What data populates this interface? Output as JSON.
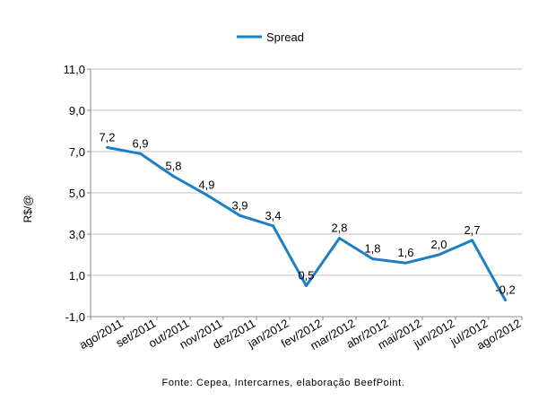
{
  "chart_data": {
    "type": "line",
    "title": "",
    "xlabel": "",
    "ylabel": "R$/@",
    "categories": [
      "ago/2011",
      "set/2011",
      "out/2011",
      "nov/2011",
      "dez/2011",
      "jan/2012",
      "fev/2012",
      "mar/2012",
      "abr/2012",
      "mai/2012",
      "jun/2012",
      "jul/2012",
      "ago/2012"
    ],
    "series": [
      {
        "name": "Spread",
        "values": [
          7.2,
          6.9,
          5.8,
          4.9,
          3.9,
          3.4,
          0.5,
          2.8,
          1.8,
          1.6,
          2.0,
          2.7,
          -0.2
        ],
        "labels": [
          "7,2",
          "6,9",
          "5,8",
          "4,9",
          "3,9",
          "3,4",
          "0,5",
          "2,8",
          "1,8",
          "1,6",
          "2,0",
          "2,7",
          "-0,2"
        ],
        "color": "#1f7fc4"
      }
    ],
    "ylim": [
      -1.0,
      11.0
    ],
    "yticks": [
      -1.0,
      1.0,
      3.0,
      5.0,
      7.0,
      9.0,
      11.0
    ],
    "ytick_labels": [
      "-1,0",
      "1,0",
      "3,0",
      "5,0",
      "7,0",
      "9,0",
      "11,0"
    ],
    "grid": true,
    "grid_color": "#c0c0c0",
    "legend": "top-center",
    "source": "Fonte: Cepea, Intercarnes, elaboração BeefPoint."
  }
}
